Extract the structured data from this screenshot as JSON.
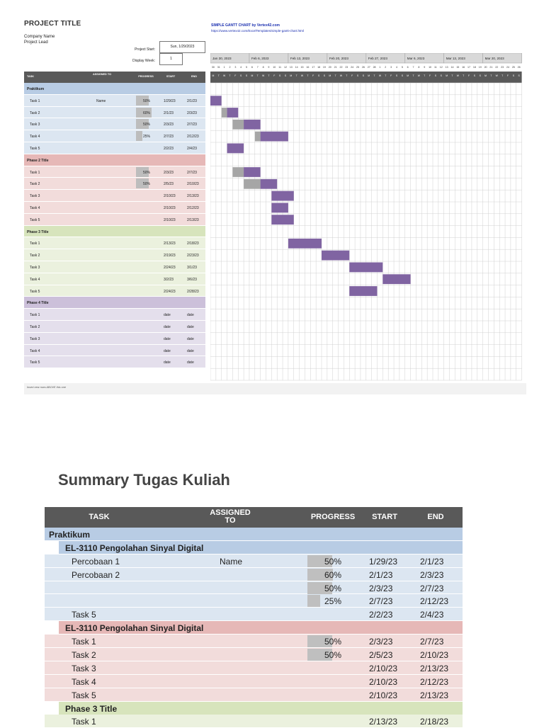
{
  "sheet": {
    "title": "PROJECT TITLE",
    "company": "Company Name",
    "lead": "Project Lead",
    "credit_title": "SIMPLE GANTT CHART by Vertex42.com",
    "credit_url": "https://www.vertex42.com/ExcelTemplates/simple-gantt-chart.html",
    "project_start_label": "Project Start:",
    "project_start_value": "Sun, 1/29/2023",
    "display_week_label": "Display Week:",
    "display_week_value": "1",
    "footer_note": "Insert new rows ABOVE this one"
  },
  "small_table": {
    "headers": {
      "task": "TASK",
      "assigned": "ASSIGNED TO",
      "progress": "PROGRESS",
      "start": "START",
      "end": "END"
    },
    "rows": [
      {
        "kind": "phase",
        "label": "Praktikum",
        "color": "#b8cce4"
      },
      {
        "kind": "task",
        "label": "Task 1",
        "assigned": "Name",
        "progress": "50%",
        "p": 0.5,
        "start": "1/29/23",
        "end": "2/1/23",
        "color": "#dce6f1"
      },
      {
        "kind": "task",
        "label": "Task 2",
        "assigned": "",
        "progress": "60%",
        "p": 0.6,
        "start": "2/1/23",
        "end": "2/3/23",
        "color": "#dce6f1"
      },
      {
        "kind": "task",
        "label": "Task 3",
        "assigned": "",
        "progress": "50%",
        "p": 0.5,
        "start": "2/3/23",
        "end": "2/7/23",
        "color": "#dce6f1"
      },
      {
        "kind": "task",
        "label": "Task 4",
        "assigned": "",
        "progress": "25%",
        "p": 0.25,
        "start": "2/7/23",
        "end": "2/12/23",
        "color": "#dce6f1"
      },
      {
        "kind": "task",
        "label": "Task 5",
        "assigned": "",
        "progress": "",
        "p": 0,
        "start": "2/2/23",
        "end": "2/4/23",
        "color": "#dce6f1"
      },
      {
        "kind": "phase",
        "label": "Phase 2 Title",
        "color": "#e6b8b7"
      },
      {
        "kind": "task",
        "label": "Task 1",
        "assigned": "",
        "progress": "50%",
        "p": 0.5,
        "start": "2/3/23",
        "end": "2/7/23",
        "color": "#f2dcdb"
      },
      {
        "kind": "task",
        "label": "Task 2",
        "assigned": "",
        "progress": "50%",
        "p": 0.5,
        "start": "2/5/23",
        "end": "2/10/23",
        "color": "#f2dcdb"
      },
      {
        "kind": "task",
        "label": "Task 3",
        "assigned": "",
        "progress": "",
        "p": 0,
        "start": "2/10/23",
        "end": "2/13/23",
        "color": "#f2dcdb"
      },
      {
        "kind": "task",
        "label": "Task 4",
        "assigned": "",
        "progress": "",
        "p": 0,
        "start": "2/10/23",
        "end": "2/12/23",
        "color": "#f2dcdb"
      },
      {
        "kind": "task",
        "label": "Task 5",
        "assigned": "",
        "progress": "",
        "p": 0,
        "start": "2/10/23",
        "end": "2/13/23",
        "color": "#f2dcdb"
      },
      {
        "kind": "phase",
        "label": "Phase 3 Title",
        "color": "#d7e4bc"
      },
      {
        "kind": "task",
        "label": "Task 1",
        "assigned": "",
        "progress": "",
        "p": 0,
        "start": "2/13/23",
        "end": "2/18/23",
        "color": "#ebf1de"
      },
      {
        "kind": "task",
        "label": "Task 2",
        "assigned": "",
        "progress": "",
        "p": 0,
        "start": "2/19/23",
        "end": "2/23/23",
        "color": "#ebf1de"
      },
      {
        "kind": "task",
        "label": "Task 3",
        "assigned": "",
        "progress": "",
        "p": 0,
        "start": "2/24/23",
        "end": "3/1/23",
        "color": "#ebf1de"
      },
      {
        "kind": "task",
        "label": "Task 4",
        "assigned": "",
        "progress": "",
        "p": 0,
        "start": "3/2/23",
        "end": "3/6/23",
        "color": "#ebf1de"
      },
      {
        "kind": "task",
        "label": "Task 5",
        "assigned": "",
        "progress": "",
        "p": 0,
        "start": "2/24/23",
        "end": "2/28/23",
        "color": "#ebf1de"
      },
      {
        "kind": "phase",
        "label": "Phase 4 Title",
        "color": "#ccc0da"
      },
      {
        "kind": "task",
        "label": "Task 1",
        "assigned": "",
        "progress": "",
        "p": 0,
        "start": "date",
        "end": "date",
        "color": "#e4dfec"
      },
      {
        "kind": "task",
        "label": "Task 2",
        "assigned": "",
        "progress": "",
        "p": 0,
        "start": "date",
        "end": "date",
        "color": "#e4dfec"
      },
      {
        "kind": "task",
        "label": "Task 3",
        "assigned": "",
        "progress": "",
        "p": 0,
        "start": "date",
        "end": "date",
        "color": "#e4dfec"
      },
      {
        "kind": "task",
        "label": "Task 4",
        "assigned": "",
        "progress": "",
        "p": 0,
        "start": "date",
        "end": "date",
        "color": "#e4dfec"
      },
      {
        "kind": "task",
        "label": "Task 5",
        "assigned": "",
        "progress": "",
        "p": 0,
        "start": "date",
        "end": "date",
        "color": "#e4dfec"
      }
    ]
  },
  "gantt": {
    "weeks": [
      "Jan 30, 2023",
      "Feb 6, 2023",
      "Feb 13, 2023",
      "Feb 20, 2023",
      "Feb 27, 2023",
      "Mar 6, 2023",
      "Mar 13, 2023",
      "Mar 20, 2023"
    ],
    "day_numbers": [
      "30",
      "31",
      "1",
      "2",
      "3",
      "4",
      "5",
      "6",
      "7",
      "8",
      "9",
      "10",
      "11",
      "12",
      "13",
      "14",
      "15",
      "16",
      "17",
      "18",
      "19",
      "20",
      "21",
      "22",
      "23",
      "24",
      "25",
      "26",
      "27",
      "28",
      "1",
      "2",
      "3",
      "4",
      "5",
      "6",
      "7",
      "8",
      "9",
      "10",
      "11",
      "12",
      "13",
      "14",
      "15",
      "16",
      "17",
      "18",
      "19",
      "20",
      "21",
      "22",
      "23",
      "24",
      "25",
      "26"
    ],
    "day_letters": [
      "M",
      "T",
      "W",
      "T",
      "F",
      "S",
      "S"
    ],
    "bar_color": "#8064a2",
    "done_color": "#a6a6a6",
    "bars": [
      {
        "row": 1,
        "start_day": "1/29",
        "days": 3,
        "done_days": 1
      },
      {
        "row": 2,
        "start_day": "2/1",
        "days": 3,
        "done_days": 1
      },
      {
        "row": 3,
        "start_day": "2/3",
        "days": 5,
        "done_days": 2
      },
      {
        "row": 4,
        "start_day": "2/7",
        "days": 6,
        "done_days": 1
      },
      {
        "row": 5,
        "start_day": "2/2",
        "days": 3,
        "done_days": 0
      },
      {
        "row": 7,
        "start_day": "2/3",
        "days": 5,
        "done_days": 2
      },
      {
        "row": 8,
        "start_day": "2/5",
        "days": 6,
        "done_days": 3
      },
      {
        "row": 9,
        "start_day": "2/10",
        "days": 4,
        "done_days": 0
      },
      {
        "row": 10,
        "start_day": "2/10",
        "days": 3,
        "done_days": 0
      },
      {
        "row": 11,
        "start_day": "2/10",
        "days": 4,
        "done_days": 0
      },
      {
        "row": 13,
        "start_day": "2/13",
        "days": 6,
        "done_days": 0
      },
      {
        "row": 14,
        "start_day": "2/19",
        "days": 5,
        "done_days": 0
      },
      {
        "row": 15,
        "start_day": "2/24",
        "days": 6,
        "done_days": 0
      },
      {
        "row": 16,
        "start_day": "3/2",
        "days": 5,
        "done_days": 0
      },
      {
        "row": 17,
        "start_day": "2/24",
        "days": 5,
        "done_days": 0
      }
    ]
  },
  "summary": {
    "title": "Summary Tugas Kuliah",
    "headers": {
      "task": "TASK",
      "assigned_1": "ASSIGNED",
      "assigned_2": "TO",
      "progress": "PROGRESS",
      "start": "START",
      "end": "END"
    },
    "rows": [
      {
        "kind": "phase",
        "label": "Praktikum",
        "indent": 0,
        "color": "#b8cce4"
      },
      {
        "kind": "sub",
        "label": "EL-3110 Pengolahan Sinyal Digital",
        "indent": 1,
        "color": "#b8cce4"
      },
      {
        "kind": "task",
        "label": "Percobaan 1",
        "assigned": "Name",
        "progress": "50%",
        "p": 0.5,
        "start": "1/29/23",
        "end": "2/1/23",
        "color": "#dce6f1"
      },
      {
        "kind": "task",
        "label": "Percobaan 2",
        "assigned": "",
        "progress": "60%",
        "p": 0.6,
        "start": "2/1/23",
        "end": "2/3/23",
        "color": "#dce6f1"
      },
      {
        "kind": "task",
        "label": "",
        "assigned": "",
        "progress": "50%",
        "p": 0.5,
        "start": "2/3/23",
        "end": "2/7/23",
        "color": "#dce6f1"
      },
      {
        "kind": "task",
        "label": "",
        "assigned": "",
        "progress": "25%",
        "p": 0.25,
        "start": "2/7/23",
        "end": "2/12/23",
        "color": "#dce6f1"
      },
      {
        "kind": "task",
        "label": "Task 5",
        "assigned": "",
        "progress": "",
        "p": 0,
        "start": "2/2/23",
        "end": "2/4/23",
        "color": "#dce6f1"
      },
      {
        "kind": "sub",
        "label": "EL-3110 Pengolahan Sinyal Digital",
        "indent": 1,
        "color": "#e6b8b7"
      },
      {
        "kind": "task",
        "label": "Task 1",
        "assigned": "",
        "progress": "50%",
        "p": 0.5,
        "start": "2/3/23",
        "end": "2/7/23",
        "color": "#f2dcdb"
      },
      {
        "kind": "task",
        "label": "Task 2",
        "assigned": "",
        "progress": "50%",
        "p": 0.5,
        "start": "2/5/23",
        "end": "2/10/23",
        "color": "#f2dcdb"
      },
      {
        "kind": "task",
        "label": "Task 3",
        "assigned": "",
        "progress": "",
        "p": 0,
        "start": "2/10/23",
        "end": "2/13/23",
        "color": "#f2dcdb"
      },
      {
        "kind": "task",
        "label": "Task 4",
        "assigned": "",
        "progress": "",
        "p": 0,
        "start": "2/10/23",
        "end": "2/12/23",
        "color": "#f2dcdb"
      },
      {
        "kind": "task",
        "label": "Task 5",
        "assigned": "",
        "progress": "",
        "p": 0,
        "start": "2/10/23",
        "end": "2/13/23",
        "color": "#f2dcdb"
      },
      {
        "kind": "sub",
        "label": "Phase 3 Title",
        "indent": 1,
        "color": "#d7e4bc"
      },
      {
        "kind": "task",
        "label": "Task 1",
        "assigned": "",
        "progress": "",
        "p": 0,
        "start": "2/13/23",
        "end": "2/18/23",
        "color": "#ebf1de"
      }
    ]
  }
}
